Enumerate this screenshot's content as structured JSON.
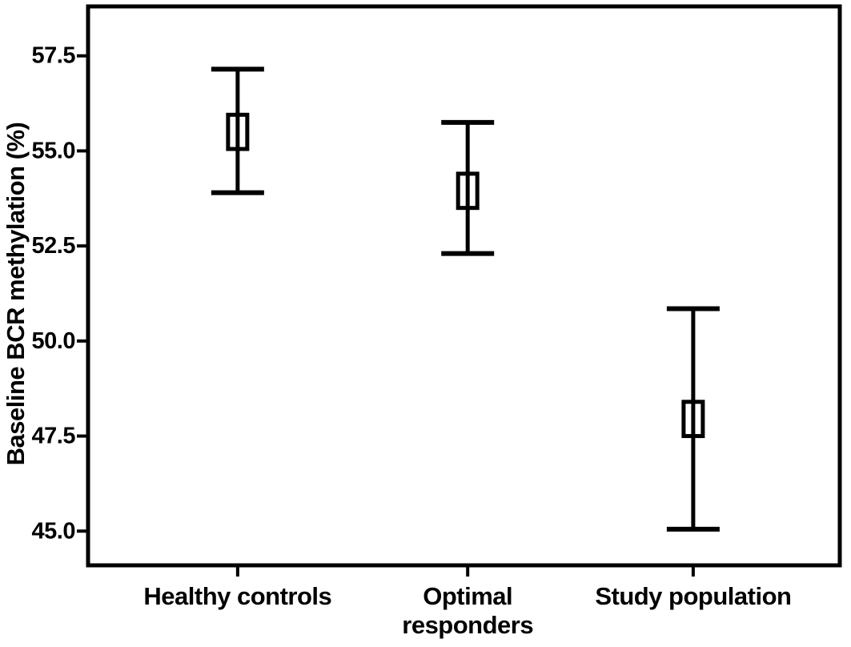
{
  "chart_data": {
    "type": "errorbar",
    "title": "",
    "xlabel": "",
    "ylabel": "Baseline BCR methylation (%)",
    "ylim": [
      44.1,
      58.8
    ],
    "yticks": [
      45.0,
      47.5,
      50.0,
      52.5,
      55.0,
      57.5
    ],
    "ytick_labels": [
      "45.0",
      "47.5",
      "50.0",
      "52.5",
      "55.0",
      "57.5"
    ],
    "categories": [
      {
        "label": "Healthy controls",
        "lines": [
          "Healthy controls"
        ]
      },
      {
        "label": "Optimal responders",
        "lines": [
          "Optimal",
          "responders"
        ]
      },
      {
        "label": "Study population",
        "lines": [
          "Study population"
        ]
      }
    ],
    "series": [
      {
        "name": "Baseline BCR methylation (%)",
        "marker": "box-with-ci-whiskers",
        "points": [
          {
            "category": "Healthy controls",
            "mean": 55.5,
            "box_low": 55.05,
            "box_high": 55.95,
            "ci_low": 53.9,
            "ci_high": 57.15
          },
          {
            "category": "Optimal responders",
            "mean": 53.95,
            "box_low": 53.5,
            "box_high": 54.4,
            "ci_low": 52.3,
            "ci_high": 55.75
          },
          {
            "category": "Study population",
            "mean": 47.95,
            "box_low": 47.5,
            "box_high": 48.4,
            "ci_low": 45.05,
            "ci_high": 50.85
          }
        ]
      }
    ],
    "grid": false,
    "legend": false,
    "frame": "full-box",
    "colors": {
      "line": "#000000",
      "text": "#000000",
      "background": "#ffffff"
    }
  }
}
